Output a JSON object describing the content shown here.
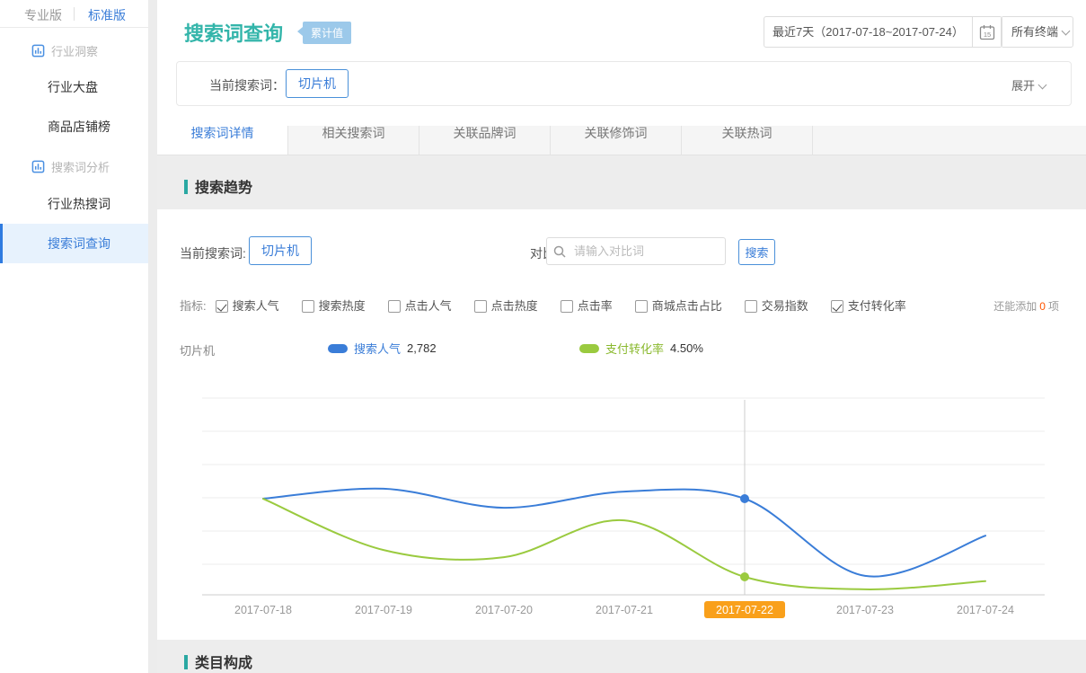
{
  "colors": {
    "accent_blue": "#3a7dd8",
    "title_teal": "#33b5aa",
    "badge_blue": "#9cc9ea",
    "section_bar_teal": "#2aa8a2",
    "highlight_orange": "#f9a01b",
    "series_blue": "#3a7dd8",
    "series_green": "#9aca3f",
    "remain_count_red": "#ff5500"
  },
  "sidebar": {
    "tabs": [
      {
        "label": "专业版",
        "active": false
      },
      {
        "label": "标准版",
        "active": true
      }
    ],
    "sections": [
      {
        "label": "行业洞察",
        "items": [
          {
            "label": "行业大盘",
            "active": false
          },
          {
            "label": "商品店铺榜",
            "active": false
          }
        ]
      },
      {
        "label": "搜索词分析",
        "items": [
          {
            "label": "行业热搜词",
            "active": false
          },
          {
            "label": "搜索词查询",
            "active": true
          }
        ]
      }
    ]
  },
  "header": {
    "title": "搜索词查询",
    "badge": "累计值",
    "date_range": "最近7天（2017-07-18~2017-07-24）",
    "calendar_day": "15",
    "terminal_select": "所有终端",
    "current_word_label": "当前搜索词：",
    "current_word": "切片机",
    "expand_label": "展开"
  },
  "tabs": [
    {
      "label": "搜索词详情",
      "active": true
    },
    {
      "label": "相关搜索词",
      "active": false
    },
    {
      "label": "关联品牌词",
      "active": false
    },
    {
      "label": "关联修饰词",
      "active": false
    },
    {
      "label": "关联热词",
      "active": false
    }
  ],
  "trend_section": {
    "title": "搜索趋势",
    "current_word_label": "当前搜索词:",
    "current_word": "切片机",
    "compare_label": "对比搜索词:",
    "compare_placeholder": "请输入对比词",
    "search_button": "搜索",
    "metrics_label": "指标:",
    "metrics": [
      {
        "label": "搜索人气",
        "checked": true
      },
      {
        "label": "搜索热度",
        "checked": false
      },
      {
        "label": "点击人气",
        "checked": false
      },
      {
        "label": "点击热度",
        "checked": false
      },
      {
        "label": "点击率",
        "checked": false
      },
      {
        "label": "商城点击占比",
        "checked": false
      },
      {
        "label": "交易指数",
        "checked": false
      },
      {
        "label": "支付转化率",
        "checked": true
      }
    ],
    "remaining_prefix": "还能添加",
    "remaining_count": "0",
    "remaining_suffix": "项",
    "legend_word": "切片机"
  },
  "chart_data": {
    "type": "line",
    "x": [
      "2017-07-18",
      "2017-07-19",
      "2017-07-20",
      "2017-07-21",
      "2017-07-22",
      "2017-07-23",
      "2017-07-24"
    ],
    "highlighted_x": "2017-07-22",
    "grid": true,
    "y_axis_labels_visible": false,
    "legend_position": "top",
    "series": [
      {
        "name": "搜索人气",
        "color": "#3a7dd8",
        "values": [
          2782,
          3060,
          2530,
          2980,
          2782,
          630,
          1750
        ],
        "selected_display": "2,782"
      },
      {
        "name": "支付转化率",
        "color": "#9aca3f",
        "unit": "%",
        "values": [
          20.8,
          10.1,
          8.6,
          16.3,
          4.5,
          1.9,
          3.6
        ],
        "selected_display": "4.50%"
      }
    ]
  },
  "category_section": {
    "title": "类目构成"
  }
}
